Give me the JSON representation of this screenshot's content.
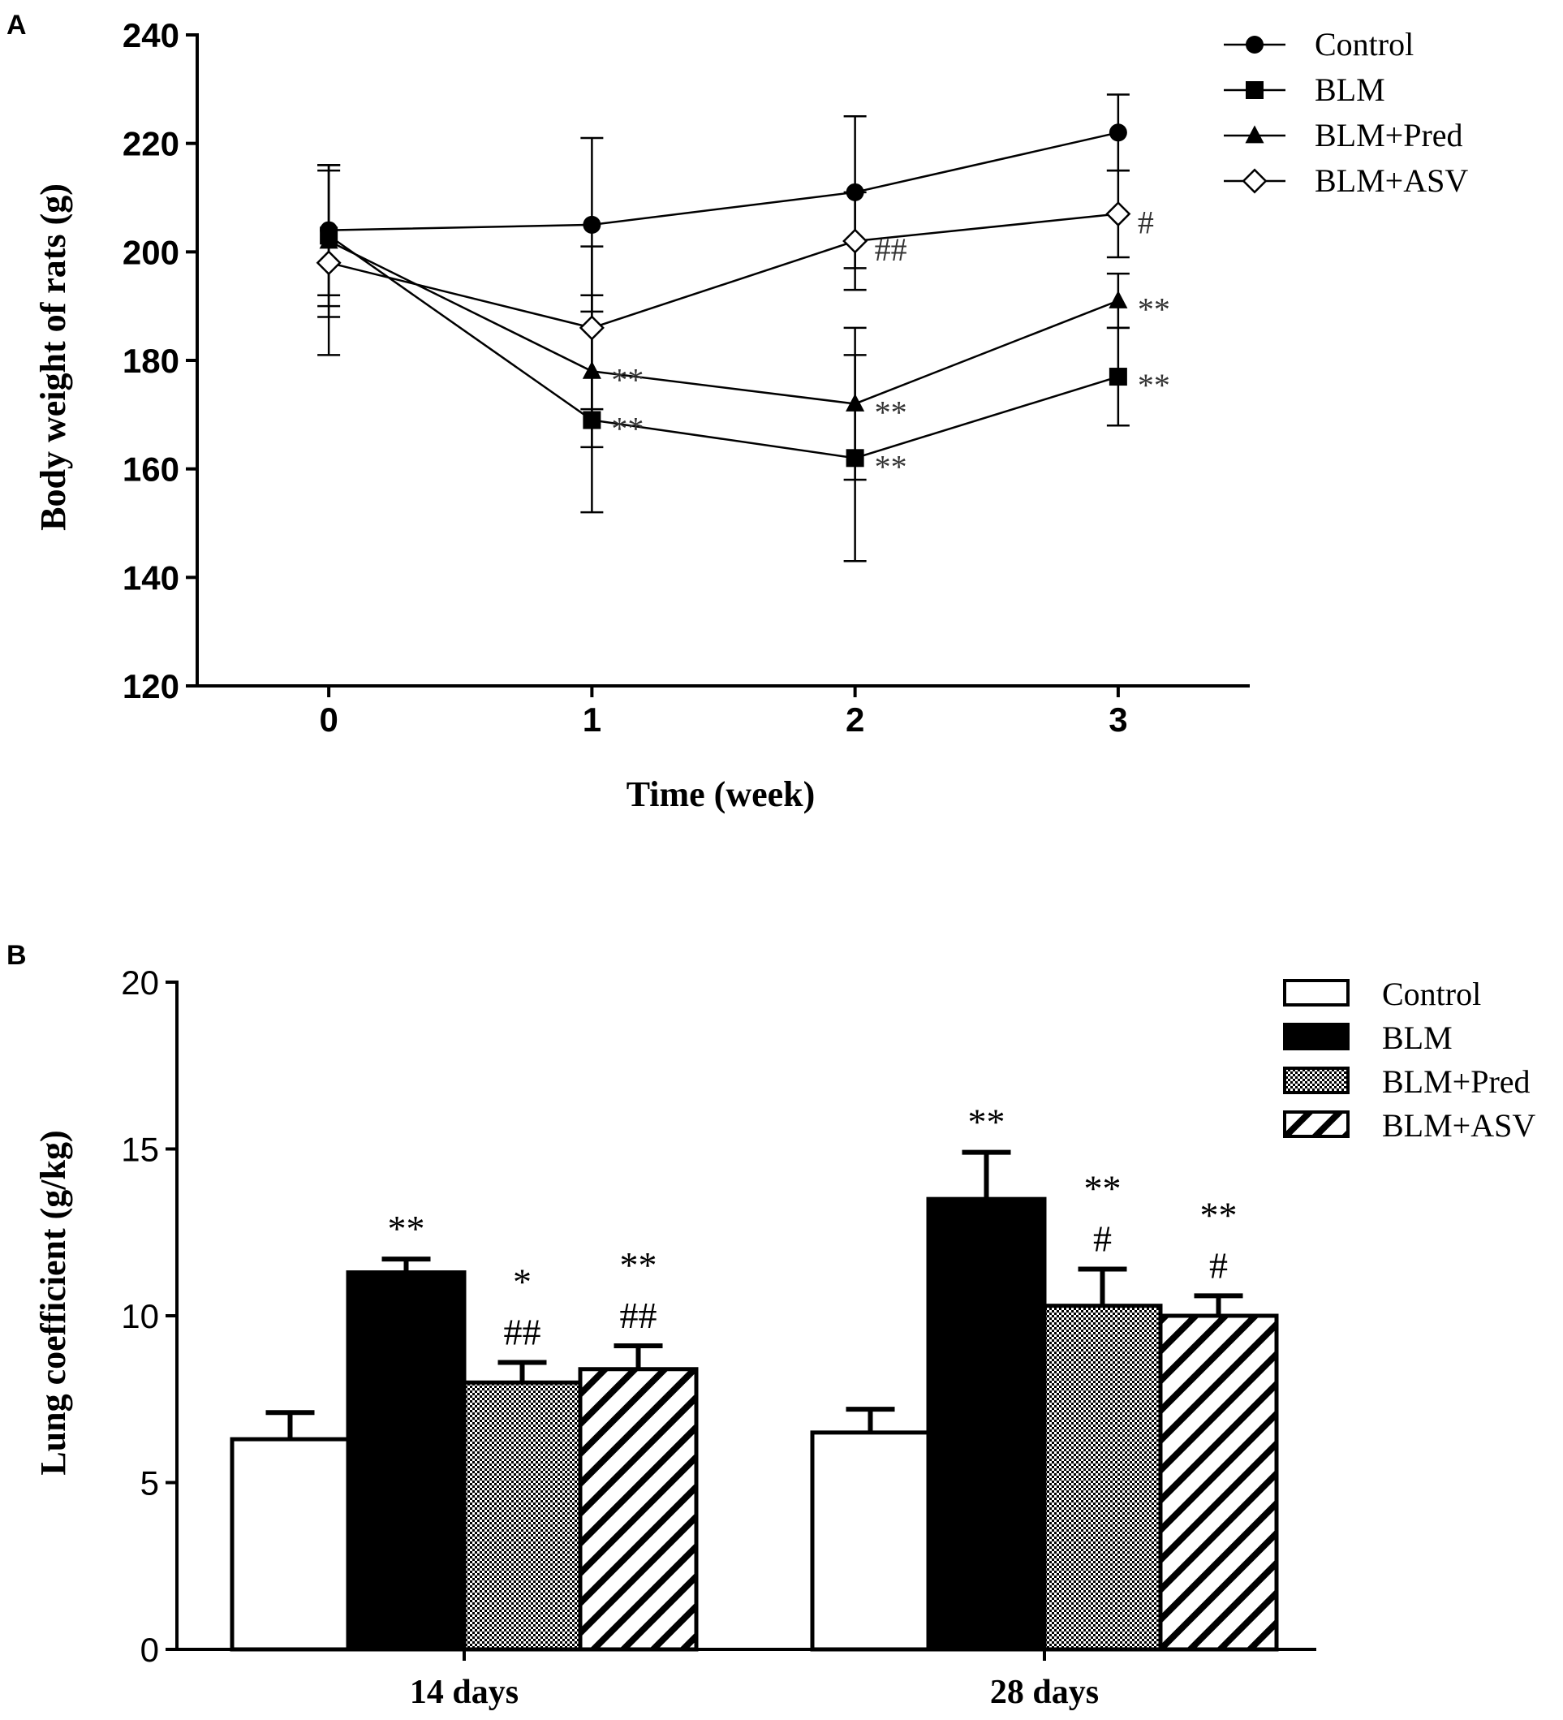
{
  "panel_a": {
    "panel_label": "A",
    "chart_data": {
      "type": "line",
      "title": "",
      "xlabel": "Time (week)",
      "ylabel": "Body weight of rats (g)",
      "x": [
        0,
        1,
        2,
        3
      ],
      "xticks": [
        "0",
        "1",
        "2",
        "3"
      ],
      "yticks": [
        "120",
        "140",
        "160",
        "180",
        "200",
        "220",
        "240"
      ],
      "ylim": [
        120,
        240
      ],
      "xlim": [
        -0.5,
        3.5
      ],
      "legend_position": "top-right",
      "series": [
        {
          "name": "Control",
          "marker": "circle",
          "values": [
            204,
            205,
            211,
            222
          ],
          "err": [
            12,
            16,
            14,
            7
          ]
        },
        {
          "name": "BLM",
          "marker": "square",
          "values": [
            203,
            169,
            162,
            177
          ],
          "err": [
            13,
            17,
            19,
            9
          ]
        },
        {
          "name": "BLM+Pred",
          "marker": "triangle",
          "values": [
            202,
            178,
            172,
            191
          ],
          "err": [
            14,
            14,
            14,
            5
          ]
        },
        {
          "name": "BLM+ASV",
          "marker": "diamond",
          "values": [
            198,
            186,
            202,
            207
          ],
          "err": [
            17,
            15,
            9,
            8
          ]
        }
      ],
      "annotations": [
        {
          "series": "BLM+Pred",
          "x": 1,
          "text": "**"
        },
        {
          "series": "BLM",
          "x": 1,
          "text": "**"
        },
        {
          "series": "BLM+ASV",
          "x": 2,
          "text": "##"
        },
        {
          "series": "BLM+Pred",
          "x": 2,
          "text": "**"
        },
        {
          "series": "BLM",
          "x": 2,
          "text": "**"
        },
        {
          "series": "BLM+ASV",
          "x": 3,
          "text": "#"
        },
        {
          "series": "BLM+Pred",
          "x": 3,
          "text": "**"
        },
        {
          "series": "BLM",
          "x": 3,
          "text": "**"
        }
      ]
    }
  },
  "panel_b": {
    "panel_label": "B",
    "chart_data": {
      "type": "bar",
      "title": "",
      "xlabel": "",
      "ylabel": "Lung coefficient (g/kg)",
      "categories": [
        "14 days",
        "28 days"
      ],
      "yticks": [
        "0",
        "5",
        "10",
        "15",
        "20"
      ],
      "ylim": [
        0,
        20
      ],
      "legend_position": "top-right",
      "series": [
        {
          "name": "Control",
          "fill": "white",
          "values": [
            6.3,
            6.5
          ],
          "err": [
            0.8,
            0.7
          ],
          "labels": [
            [],
            []
          ]
        },
        {
          "name": "BLM",
          "fill": "black",
          "values": [
            11.3,
            13.5
          ],
          "err": [
            0.4,
            1.4
          ],
          "labels": [
            [
              "**"
            ],
            [
              "**"
            ]
          ]
        },
        {
          "name": "BLM+Pred",
          "fill": "checker",
          "values": [
            8.0,
            10.3
          ],
          "err": [
            0.6,
            1.1
          ],
          "labels": [
            [
              "*",
              "##"
            ],
            [
              "**",
              "#"
            ]
          ]
        },
        {
          "name": "BLM+ASV",
          "fill": "diagonal",
          "values": [
            8.4,
            10.0
          ],
          "err": [
            0.7,
            0.6
          ],
          "labels": [
            [
              "**",
              "##"
            ],
            [
              "**",
              "#"
            ]
          ]
        }
      ]
    }
  }
}
